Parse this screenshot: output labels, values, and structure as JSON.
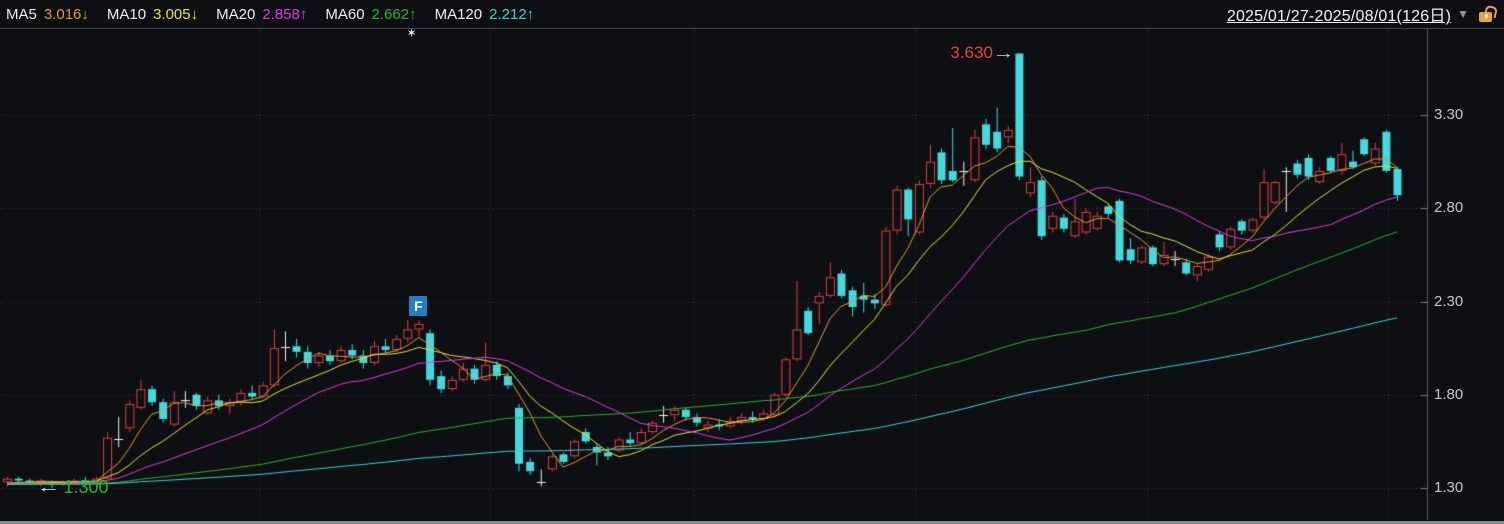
{
  "header": {
    "legend": [
      {
        "label": "MA5",
        "text": "3.016↓",
        "value": 3.016,
        "direction": "down",
        "color": "#e09a32"
      },
      {
        "label": "MA10",
        "text": "3.005↓",
        "value": 3.005,
        "direction": "down",
        "color": "#e6e338"
      },
      {
        "label": "MA20",
        "text": "2.858↑",
        "value": 2.858,
        "direction": "up",
        "color": "#e23ae2"
      },
      {
        "label": "MA60",
        "text": "2.662↑",
        "value": 2.662,
        "direction": "up",
        "color": "#2bb22b"
      },
      {
        "label": "MA120",
        "text": "2.212↑",
        "value": 2.212,
        "direction": "up",
        "color": "#3bd2d6"
      }
    ],
    "date_range": "2025/01/27-2025/08/01(126日)",
    "caret_icon": "▼"
  },
  "y_axis": {
    "ticks": [
      "3.30",
      "2.80",
      "2.30",
      "1.80",
      "1.30"
    ],
    "tick_values": [
      3.3,
      2.8,
      2.3,
      1.8,
      1.3
    ]
  },
  "annotations": {
    "max_label": "3.630",
    "max_price": 3.63,
    "max_day": 91,
    "max_arrow_icon": "→",
    "min_label": "1.300",
    "min_price": 1.3,
    "min_day": 4,
    "min_arrow_icon": "←",
    "flag_label": "F",
    "flag_day": 37,
    "star_icon": "✶",
    "star_day": 37
  },
  "chart_data": {
    "type": "candlestick",
    "title": "",
    "date_start": "2025/01/27",
    "date_end": "2025/08/01",
    "period_label": "126日",
    "period_days": 126,
    "ylim": [
      1.25,
      3.7
    ],
    "y_gridline_prices": [
      3.3,
      2.8,
      2.3,
      1.8,
      1.3
    ],
    "grid": "dotted",
    "colors": {
      "up": "#e0403d",
      "down": "#43d9dd",
      "doji": "#ecf0f3"
    },
    "ma": [
      {
        "name": "MA5",
        "period": 5,
        "value": 3.016,
        "color": "#e09a32"
      },
      {
        "name": "MA10",
        "period": 10,
        "value": 3.005,
        "color": "#e6e338"
      },
      {
        "name": "MA20",
        "period": 20,
        "value": 2.858,
        "color": "#e23ae2"
      },
      {
        "name": "MA60",
        "period": 60,
        "value": 2.662,
        "color": "#2bb22b"
      },
      {
        "name": "MA120",
        "period": 120,
        "value": 2.212,
        "color": "#3bd2d6"
      }
    ],
    "seed_close": 1.32,
    "ohlc": [
      [
        1.33,
        1.36,
        1.31,
        1.35
      ],
      [
        1.35,
        1.36,
        1.33,
        1.34
      ],
      [
        1.34,
        1.35,
        1.32,
        1.33
      ],
      [
        1.33,
        1.35,
        1.31,
        1.34
      ],
      [
        1.33,
        1.34,
        1.3,
        1.32
      ],
      [
        1.32,
        1.34,
        1.31,
        1.335
      ],
      [
        1.33,
        1.35,
        1.32,
        1.34
      ],
      [
        1.34,
        1.36,
        1.32,
        1.33
      ],
      [
        1.33,
        1.36,
        1.32,
        1.35
      ],
      [
        1.35,
        1.6,
        1.34,
        1.57
      ],
      [
        1.57,
        1.68,
        1.52,
        1.565
      ],
      [
        1.62,
        1.77,
        1.6,
        1.75
      ],
      [
        1.73,
        1.88,
        1.72,
        1.83
      ],
      [
        1.83,
        1.85,
        1.74,
        1.76
      ],
      [
        1.76,
        1.78,
        1.65,
        1.67
      ],
      [
        1.64,
        1.82,
        1.63,
        1.76
      ],
      [
        1.77,
        1.82,
        1.73,
        1.77
      ],
      [
        1.8,
        1.81,
        1.72,
        1.74
      ],
      [
        1.7,
        1.79,
        1.69,
        1.77
      ],
      [
        1.77,
        1.8,
        1.72,
        1.74
      ],
      [
        1.74,
        1.78,
        1.7,
        1.76
      ],
      [
        1.76,
        1.83,
        1.74,
        1.81
      ],
      [
        1.81,
        1.85,
        1.77,
        1.79
      ],
      [
        1.79,
        1.87,
        1.78,
        1.85
      ],
      [
        1.85,
        2.15,
        1.84,
        2.05
      ],
      [
        2.05,
        2.14,
        1.98,
        2.055
      ],
      [
        2.06,
        2.1,
        2.0,
        2.03
      ],
      [
        2.03,
        2.06,
        1.94,
        1.97
      ],
      [
        1.97,
        2.03,
        1.95,
        2.01
      ],
      [
        2.01,
        2.04,
        1.96,
        1.98
      ],
      [
        1.98,
        2.06,
        1.97,
        2.04
      ],
      [
        2.04,
        2.07,
        1.99,
        2.01
      ],
      [
        2.01,
        2.04,
        1.94,
        1.97
      ],
      [
        1.97,
        2.09,
        1.96,
        2.06
      ],
      [
        2.06,
        2.1,
        2.02,
        2.04
      ],
      [
        2.04,
        2.12,
        2.03,
        2.1
      ],
      [
        2.1,
        2.2,
        2.08,
        2.15
      ],
      [
        2.15,
        2.2,
        2.11,
        2.18
      ],
      [
        2.13,
        2.15,
        1.85,
        1.88
      ],
      [
        1.9,
        1.93,
        1.81,
        1.83
      ],
      [
        1.83,
        1.9,
        1.82,
        1.88
      ],
      [
        1.88,
        1.97,
        1.87,
        1.94
      ],
      [
        1.94,
        1.96,
        1.86,
        1.88
      ],
      [
        1.88,
        2.08,
        1.87,
        1.96
      ],
      [
        1.96,
        1.98,
        1.88,
        1.9
      ],
      [
        1.9,
        1.92,
        1.83,
        1.85
      ],
      [
        1.73,
        1.75,
        1.39,
        1.43
      ],
      [
        1.44,
        1.46,
        1.37,
        1.39
      ],
      [
        1.33,
        1.4,
        1.31,
        1.33
      ],
      [
        1.4,
        1.48,
        1.39,
        1.47
      ],
      [
        1.48,
        1.49,
        1.43,
        1.44
      ],
      [
        1.47,
        1.56,
        1.46,
        1.55
      ],
      [
        1.6,
        1.62,
        1.54,
        1.55
      ],
      [
        1.52,
        1.54,
        1.42,
        1.49
      ],
      [
        1.49,
        1.52,
        1.45,
        1.47
      ],
      [
        1.5,
        1.57,
        1.49,
        1.56
      ],
      [
        1.56,
        1.6,
        1.52,
        1.54
      ],
      [
        1.54,
        1.62,
        1.53,
        1.6
      ],
      [
        1.6,
        1.66,
        1.59,
        1.65
      ],
      [
        1.69,
        1.74,
        1.65,
        1.69
      ],
      [
        1.69,
        1.74,
        1.66,
        1.72
      ],
      [
        1.72,
        1.73,
        1.66,
        1.68
      ],
      [
        1.68,
        1.7,
        1.63,
        1.65
      ],
      [
        1.62,
        1.66,
        1.6,
        1.64
      ],
      [
        1.64,
        1.67,
        1.61,
        1.63
      ],
      [
        1.63,
        1.68,
        1.62,
        1.66
      ],
      [
        1.66,
        1.7,
        1.64,
        1.68
      ],
      [
        1.68,
        1.71,
        1.65,
        1.67
      ],
      [
        1.67,
        1.72,
        1.66,
        1.7
      ],
      [
        1.69,
        1.81,
        1.68,
        1.8
      ],
      [
        1.8,
        2.0,
        1.79,
        1.99
      ],
      [
        1.99,
        2.41,
        1.98,
        2.15
      ],
      [
        2.25,
        2.27,
        2.12,
        2.13
      ],
      [
        2.29,
        2.35,
        2.18,
        2.33
      ],
      [
        2.33,
        2.51,
        2.32,
        2.43
      ],
      [
        2.45,
        2.47,
        2.32,
        2.33
      ],
      [
        2.36,
        2.38,
        2.22,
        2.27
      ],
      [
        2.33,
        2.4,
        2.24,
        2.31
      ],
      [
        2.31,
        2.34,
        2.26,
        2.29
      ],
      [
        2.28,
        2.7,
        2.27,
        2.68
      ],
      [
        2.68,
        2.92,
        2.66,
        2.9
      ],
      [
        2.9,
        2.91,
        2.65,
        2.74
      ],
      [
        2.67,
        2.95,
        2.66,
        2.93
      ],
      [
        2.93,
        3.14,
        2.91,
        3.05
      ],
      [
        3.1,
        3.12,
        2.93,
        2.95
      ],
      [
        3.0,
        3.23,
        2.94,
        2.95
      ],
      [
        2.995,
        3.05,
        2.92,
        3.0
      ],
      [
        2.95,
        3.22,
        2.94,
        3.18
      ],
      [
        3.25,
        3.28,
        3.12,
        3.14
      ],
      [
        3.21,
        3.34,
        3.1,
        3.12
      ],
      [
        3.18,
        3.24,
        3.15,
        3.22
      ],
      [
        3.63,
        3.63,
        2.95,
        2.97
      ],
      [
        2.88,
        3.02,
        2.86,
        2.94
      ],
      [
        2.95,
        2.97,
        2.63,
        2.65
      ],
      [
        2.69,
        2.78,
        2.67,
        2.76
      ],
      [
        2.75,
        2.77,
        2.67,
        2.69
      ],
      [
        2.65,
        2.85,
        2.64,
        2.73
      ],
      [
        2.67,
        2.8,
        2.66,
        2.78
      ],
      [
        2.69,
        2.78,
        2.68,
        2.76
      ],
      [
        2.81,
        2.82,
        2.75,
        2.77
      ],
      [
        2.84,
        2.85,
        2.51,
        2.52
      ],
      [
        2.58,
        2.64,
        2.5,
        2.52
      ],
      [
        2.51,
        2.6,
        2.5,
        2.59
      ],
      [
        2.59,
        2.6,
        2.49,
        2.5
      ],
      [
        2.5,
        2.62,
        2.49,
        2.55
      ],
      [
        2.53,
        2.57,
        2.49,
        2.53
      ],
      [
        2.51,
        2.53,
        2.44,
        2.45
      ],
      [
        2.44,
        2.5,
        2.41,
        2.49
      ],
      [
        2.47,
        2.55,
        2.46,
        2.54
      ],
      [
        2.66,
        2.68,
        2.57,
        2.59
      ],
      [
        2.59,
        2.7,
        2.58,
        2.69
      ],
      [
        2.73,
        2.74,
        2.66,
        2.68
      ],
      [
        2.68,
        2.75,
        2.67,
        2.74
      ],
      [
        2.75,
        3.01,
        2.74,
        2.94
      ],
      [
        2.83,
        2.95,
        2.82,
        2.94
      ],
      [
        3.0,
        3.02,
        2.78,
        3.0
      ],
      [
        3.04,
        3.06,
        2.96,
        2.98
      ],
      [
        3.07,
        3.09,
        2.95,
        2.97
      ],
      [
        2.94,
        3.02,
        2.93,
        3.0
      ],
      [
        3.07,
        3.08,
        2.99,
        3.0
      ],
      [
        3.0,
        3.15,
        2.98,
        3.09
      ],
      [
        3.05,
        3.11,
        3.01,
        3.02
      ],
      [
        3.17,
        3.18,
        3.08,
        3.09
      ],
      [
        3.04,
        3.15,
        3.03,
        3.12
      ],
      [
        3.21,
        3.22,
        2.99,
        3.0
      ],
      [
        3.01,
        3.02,
        2.84,
        2.87
      ]
    ]
  }
}
